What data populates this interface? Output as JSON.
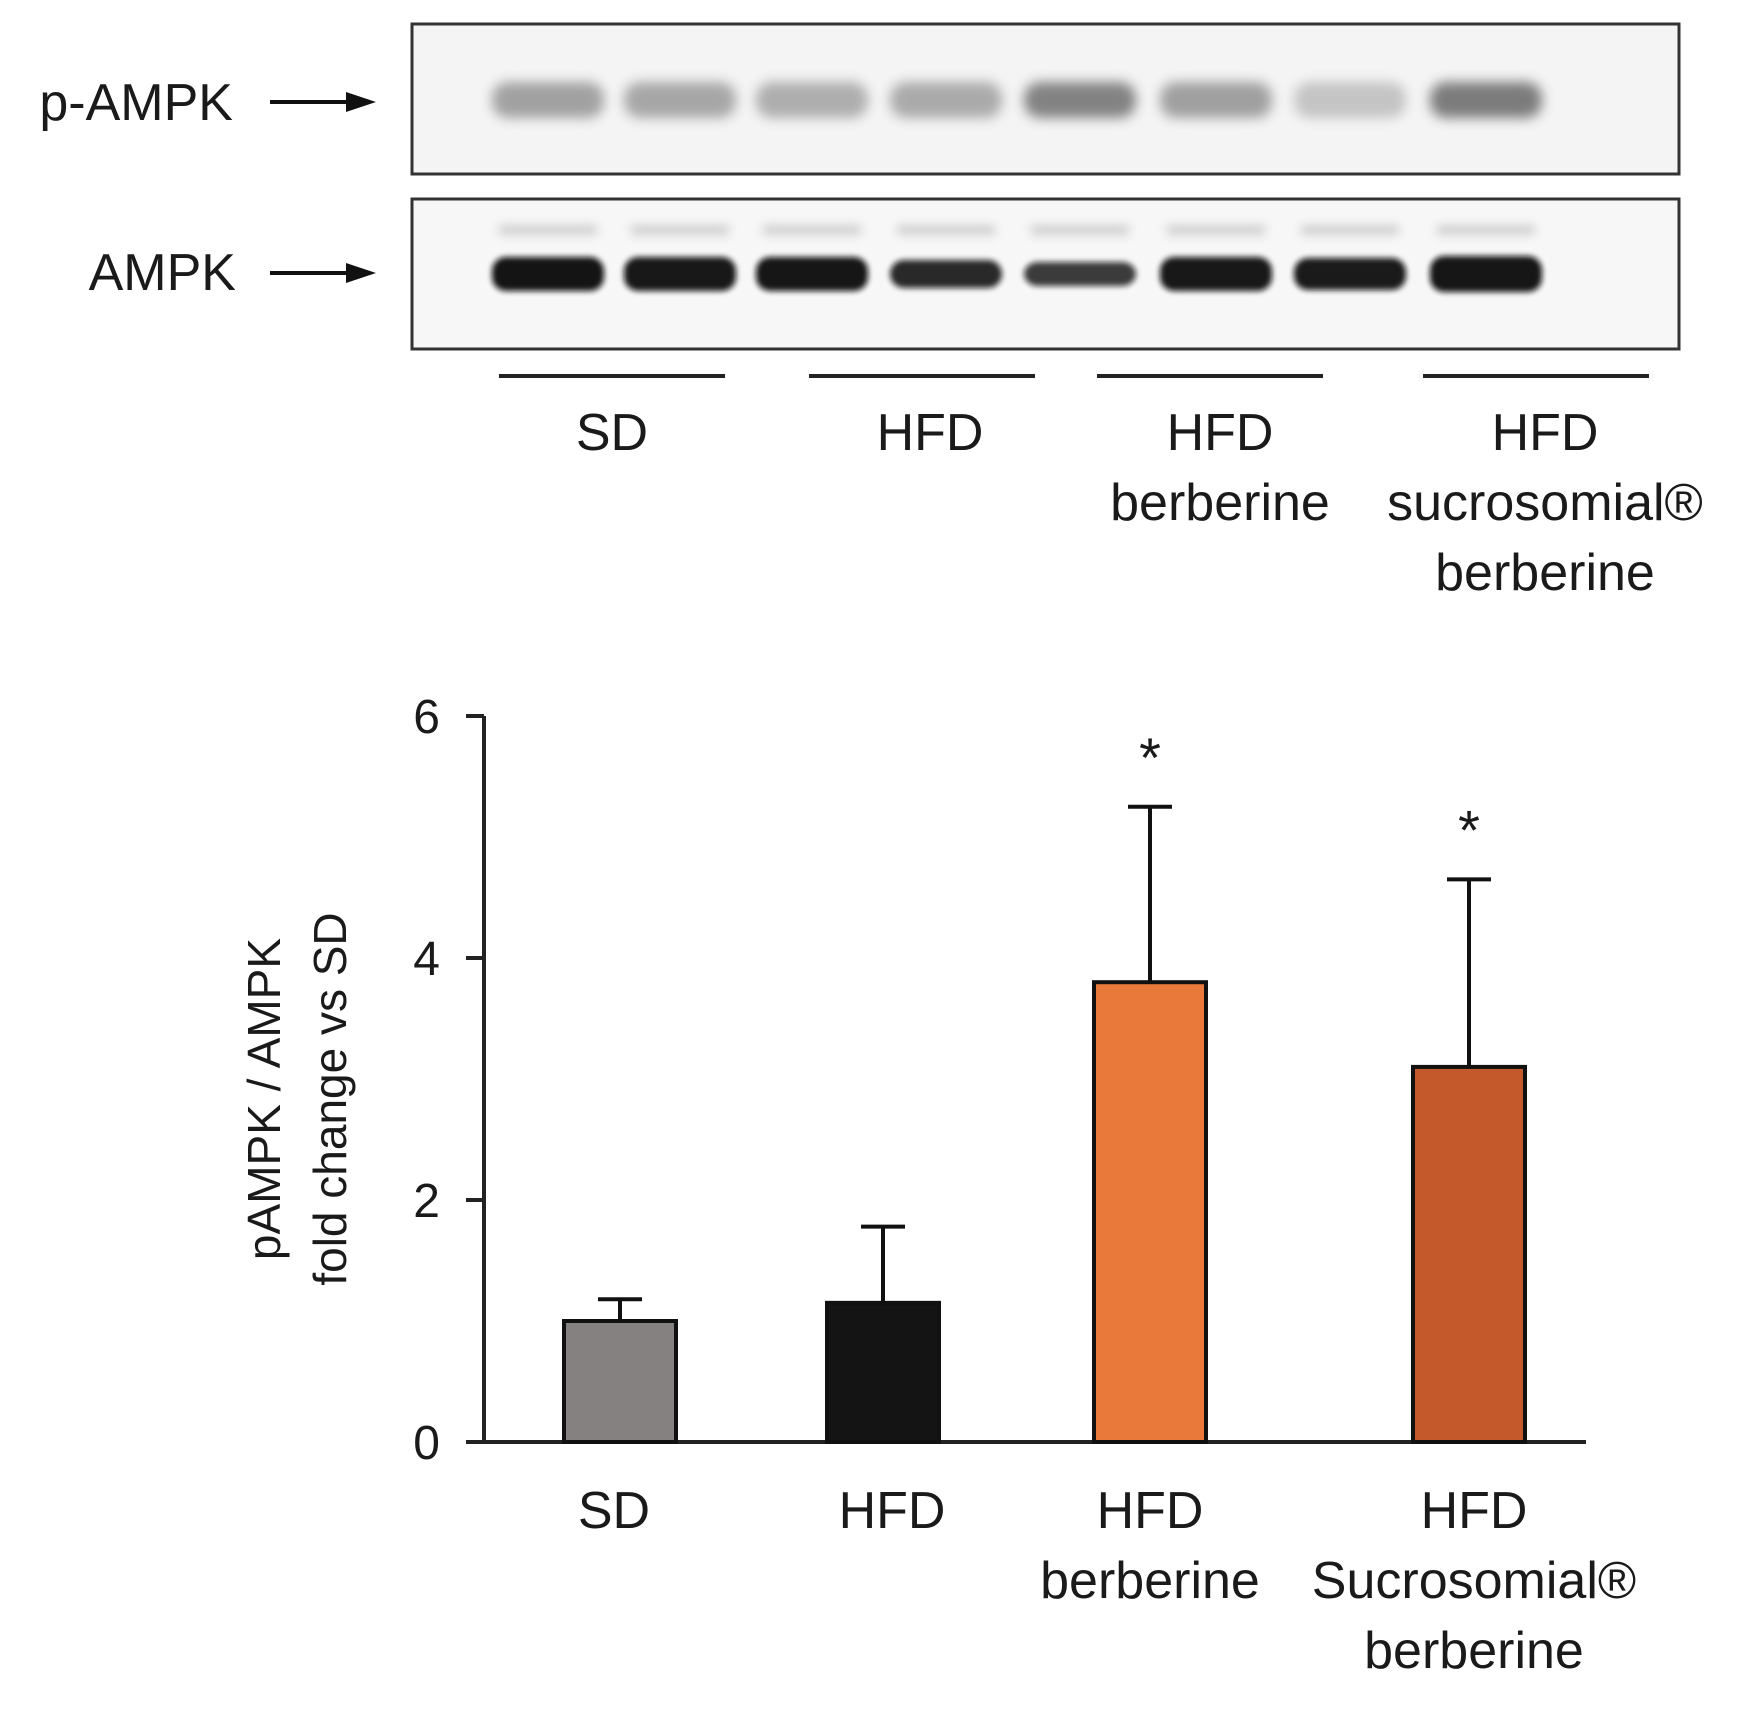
{
  "blot": {
    "rows": [
      {
        "label": "p-AMPK"
      },
      {
        "label": "AMPK"
      }
    ],
    "groups": [
      {
        "lines": [
          "SD"
        ]
      },
      {
        "lines": [
          "HFD"
        ]
      },
      {
        "lines": [
          "HFD",
          "berberine"
        ]
      },
      {
        "lines": [
          "HFD",
          "sucrosomial®",
          "berberine"
        ]
      }
    ]
  },
  "chart_data": {
    "type": "bar",
    "categories": [
      [
        "SD"
      ],
      [
        "HFD"
      ],
      [
        "HFD",
        "berberine"
      ],
      [
        "HFD",
        "Sucrosomial®",
        "berberine"
      ]
    ],
    "values": [
      1.0,
      1.15,
      3.8,
      3.1
    ],
    "errors": [
      0.18,
      0.63,
      1.45,
      1.55
    ],
    "significance": [
      "",
      "",
      "*",
      "*"
    ],
    "colors": [
      "#858180",
      "#141414",
      "#e8793a",
      "#c4592b"
    ],
    "ylabel_lines": [
      "pAMPK / AMPK",
      "fold change vs SD"
    ],
    "ylim": [
      0,
      6
    ],
    "yticks": [
      0,
      2,
      4,
      6
    ],
    "grid": false
  }
}
